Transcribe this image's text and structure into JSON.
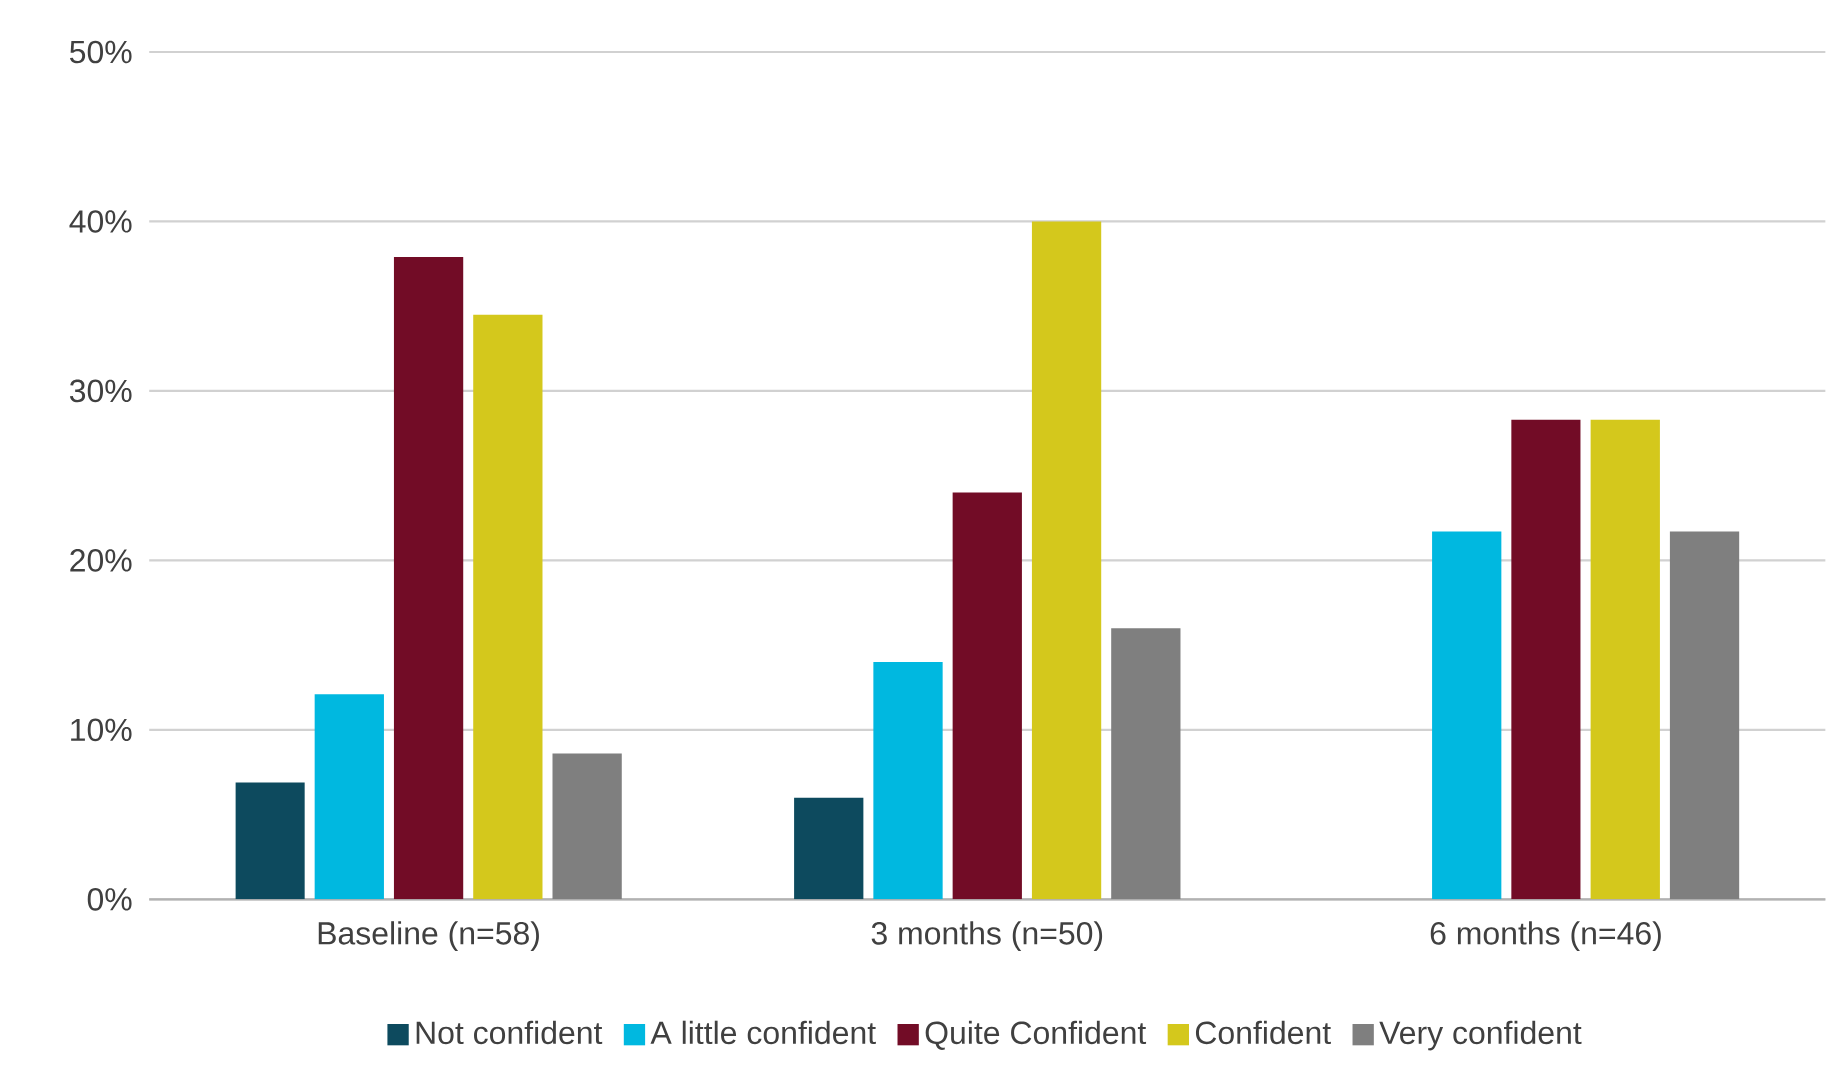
{
  "chart_data": {
    "type": "bar",
    "categories": [
      "Baseline (n=58)",
      "3 months (n=50)",
      "6 months (n=46)"
    ],
    "series": [
      {
        "name": "Not confident",
        "color": "#0d4a5e",
        "values": [
          6.9,
          6,
          0
        ]
      },
      {
        "name": "A little confident",
        "color": "#00b8e0",
        "values": [
          12.1,
          14,
          21.7
        ]
      },
      {
        "name": "Quite Confident",
        "color": "#720c26",
        "values": [
          37.9,
          24,
          28.3
        ]
      },
      {
        "name": "Confident",
        "color": "#d4c81c",
        "values": [
          34.5,
          40,
          28.3
        ]
      },
      {
        "name": "Very confident",
        "color": "#7f7f7f",
        "values": [
          8.6,
          16,
          21.7
        ]
      }
    ],
    "ylim": [
      0,
      50
    ],
    "yticks": [
      {
        "value": 0,
        "label": "0%"
      },
      {
        "value": 10,
        "label": "10%"
      },
      {
        "value": 20,
        "label": "20%"
      },
      {
        "value": 30,
        "label": "30%"
      },
      {
        "value": 40,
        "label": "40%"
      },
      {
        "value": 50,
        "label": "50%"
      }
    ],
    "grid": "y",
    "legend": "bottom"
  }
}
